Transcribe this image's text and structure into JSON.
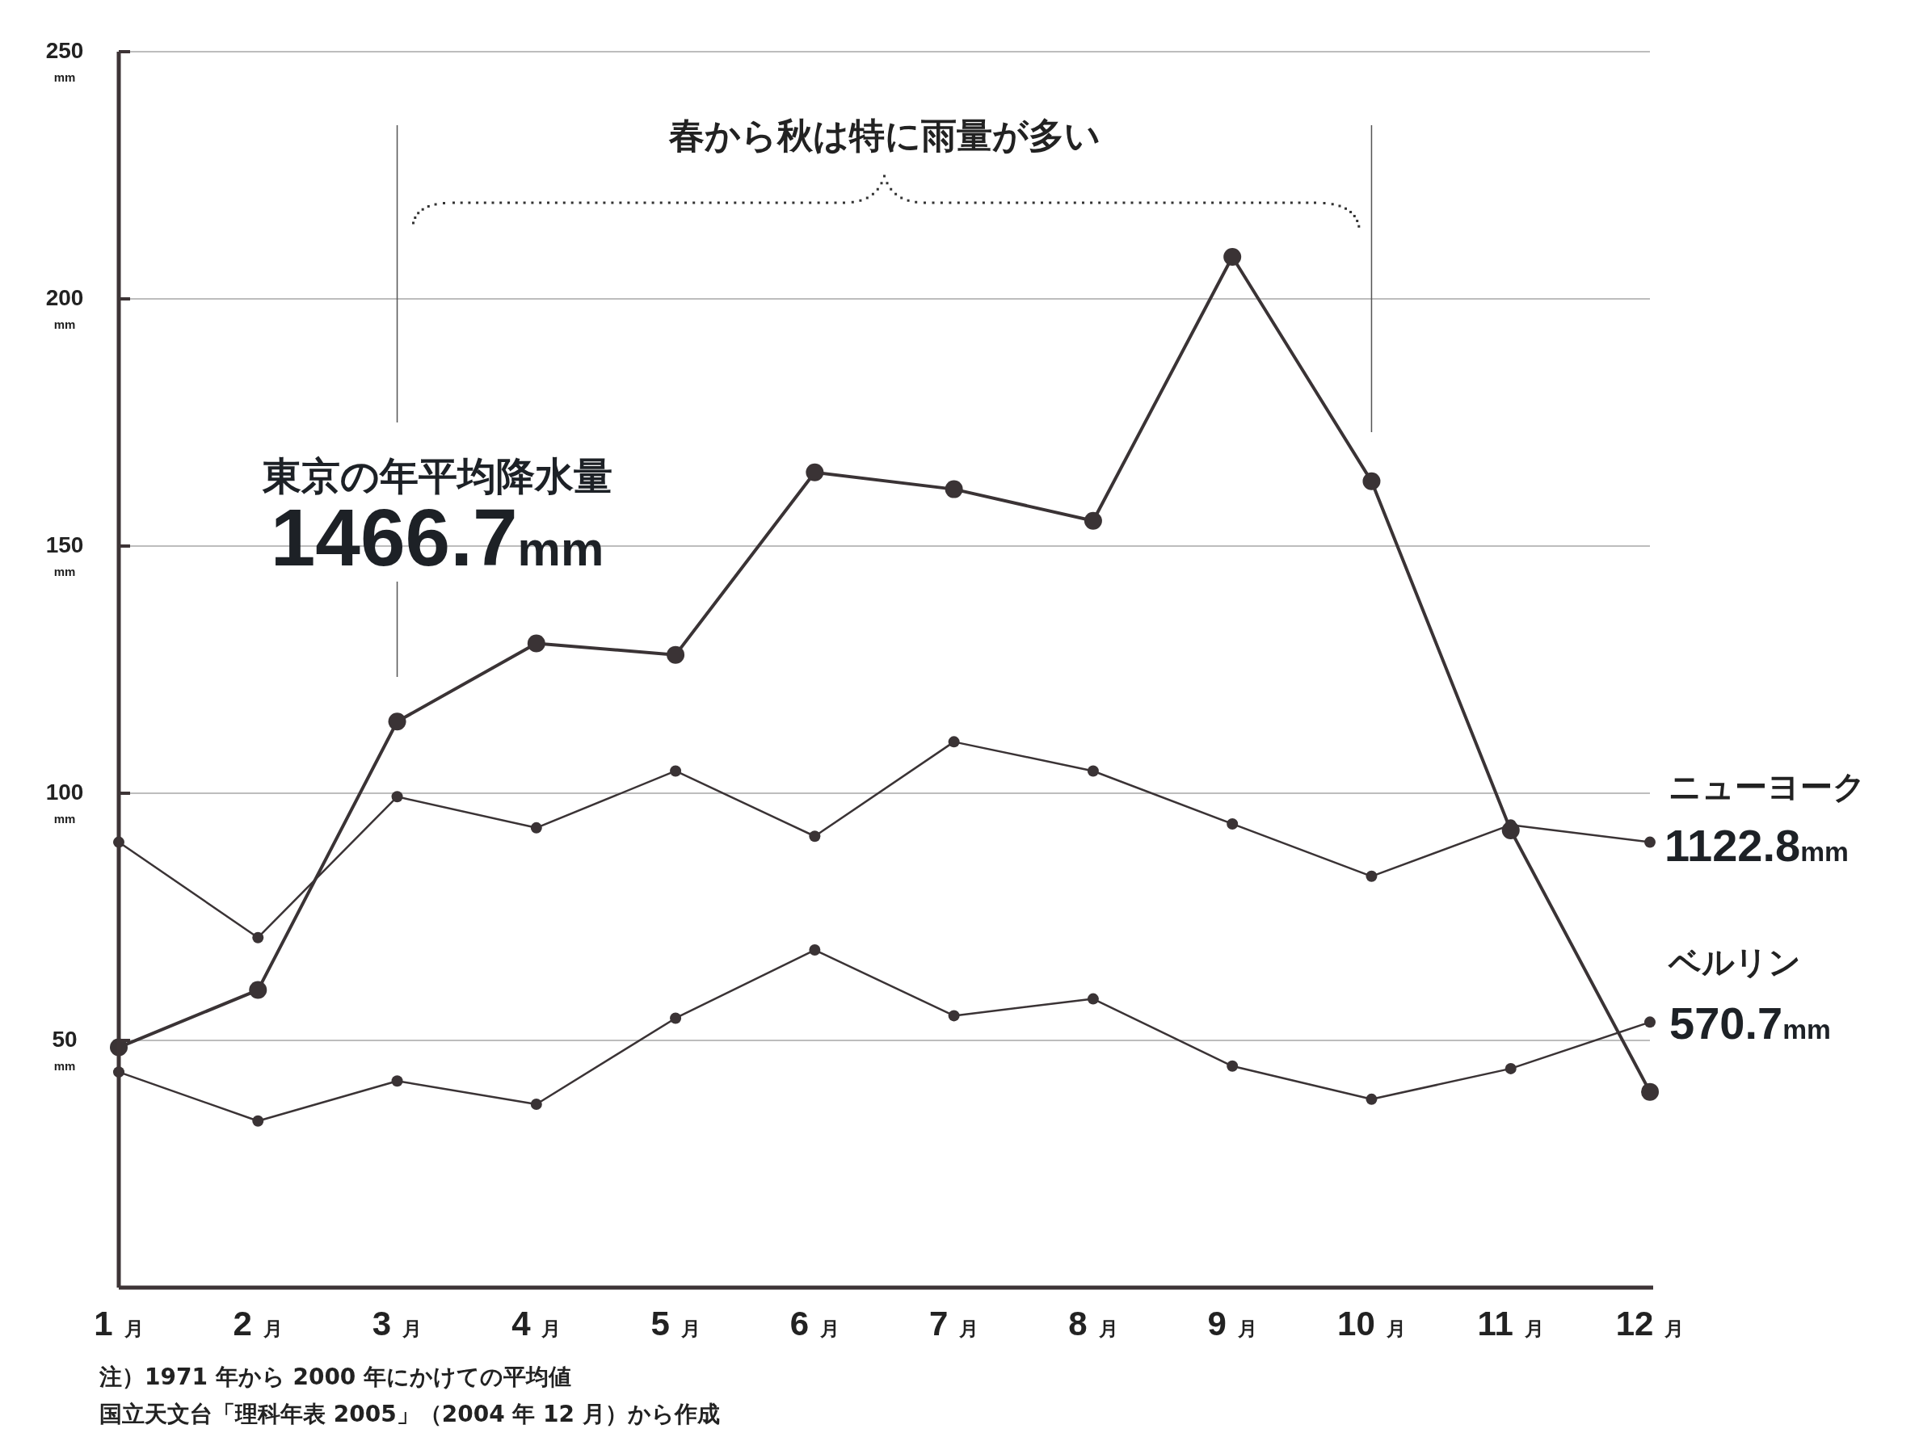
{
  "chart_data": {
    "type": "line",
    "categories": [
      "1月",
      "2月",
      "3月",
      "4月",
      "5月",
      "6月",
      "7月",
      "8月",
      "9月",
      "10月",
      "11月",
      "12月"
    ],
    "series": [
      {
        "color": "#3a3335",
        "values": [
          48.6,
          60.2,
          114.5,
          130.3,
          128.0,
          164.9,
          161.5,
          155.1,
          208.5,
          163.1,
          92.5,
          39.6
        ]
      },
      {
        "name": "ニューヨーク",
        "color": "#3a3335",
        "values": [
          90.1,
          70.8,
          99.3,
          93,
          104.5,
          91.3,
          110.4,
          104.5,
          93.8,
          83.2,
          93.6,
          90.1
        ]
      },
      {
        "name": "ベルリン",
        "color": "#3a3335",
        "values": [
          43.6,
          33.7,
          41.8,
          37.1,
          54.5,
          68.3,
          55,
          58.4,
          44.8,
          38.1,
          44.3,
          53.7
        ]
      }
    ],
    "ylim": [
      0,
      250
    ],
    "yticks": [
      {
        "value": 50,
        "label": "50$_{mm}$"
      },
      {
        "value": 100,
        "label": "100$_{mm}$"
      },
      {
        "value": 150,
        "label": "150$_{mm}$"
      },
      {
        "value": 200,
        "label": "200$_{mm}$"
      },
      {
        "value": 250,
        "label": "250$_{mm}$"
      }
    ],
    "grid": "y",
    "marker": "circle",
    "annotations": [
      "春から秋は特に雨量が多い",
      "東京の年平均降水量",
      "1466.7mm",
      "1122.8mm",
      "570.7mm",
      "注）1971 年から 2000 年にかけての平均値",
      "国立天文台「理科年表 2005」（2004 年 12 月）から作成"
    ]
  }
}
